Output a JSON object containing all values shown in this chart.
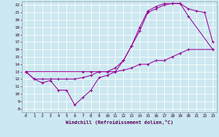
{
  "bg_color": "#cce8f0",
  "grid_color": "#ffffff",
  "line_color": "#990099",
  "xlim": [
    -0.5,
    23.5
  ],
  "ylim": [
    7.5,
    22.5
  ],
  "xticks": [
    0,
    1,
    2,
    3,
    4,
    5,
    6,
    7,
    8,
    9,
    10,
    11,
    12,
    13,
    14,
    15,
    16,
    17,
    18,
    19,
    20,
    21,
    22,
    23
  ],
  "yticks": [
    8,
    9,
    10,
    11,
    12,
    13,
    14,
    15,
    16,
    17,
    18,
    19,
    20,
    21,
    22
  ],
  "xlabel": "Windchill (Refroidissement éolien,°C)",
  "curve1_x": [
    0,
    1,
    2,
    3,
    4,
    5,
    6,
    7,
    8,
    9,
    10,
    11,
    12,
    13,
    14,
    15,
    16,
    17,
    18,
    19,
    20,
    21,
    22,
    23
  ],
  "curve1_y": [
    13,
    12,
    11.5,
    11.8,
    10.5,
    10.5,
    8.5,
    9.5,
    10.5,
    12.2,
    12.5,
    13,
    14.5,
    16.5,
    18.5,
    21,
    21.5,
    22,
    22.2,
    22.2,
    21.5,
    21.2,
    21,
    17
  ],
  "curve2_x": [
    0,
    1,
    2,
    3,
    4,
    5,
    6,
    7,
    8,
    9,
    10,
    11,
    12,
    13,
    14,
    15,
    16,
    17,
    18,
    19,
    20,
    23
  ],
  "curve2_y": [
    13,
    12,
    12,
    12,
    12,
    12,
    12,
    12.2,
    12.5,
    13,
    13,
    13,
    13.2,
    13.5,
    14,
    14,
    14.5,
    14.5,
    15,
    15.5,
    16,
    16
  ],
  "curve3_x": [
    0,
    7,
    8,
    9,
    10,
    11,
    12,
    13,
    14,
    15,
    16,
    17,
    18,
    19,
    20,
    23
  ],
  "curve3_y": [
    13,
    13,
    13,
    13,
    13,
    13.5,
    14.5,
    16.5,
    19,
    21.2,
    21.8,
    22.2,
    22.2,
    22.2,
    20.5,
    16
  ]
}
